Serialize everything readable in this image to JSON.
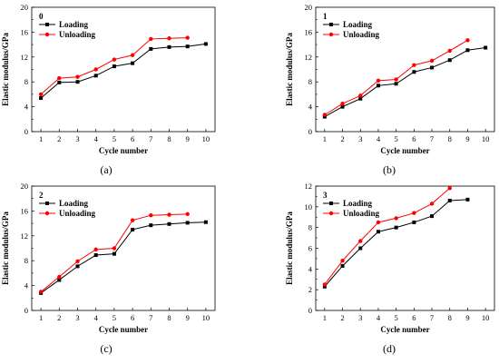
{
  "chart_data": [
    {
      "type": "line",
      "panel_tag": "0",
      "caption": "(a)",
      "xlabel": "Cycle number",
      "ylabel": "Elastic modulus/GPa",
      "x_ticks": [
        1,
        2,
        3,
        4,
        5,
        6,
        7,
        8,
        9,
        10
      ],
      "y_ticks": [
        0,
        4,
        8,
        12,
        16,
        20
      ],
      "xlim": [
        0.5,
        10.5
      ],
      "ylim": [
        0,
        20
      ],
      "legend_position": "top-left",
      "series": [
        {
          "name": "Loading",
          "color": "#000000",
          "marker": "square",
          "x": [
            1,
            2,
            3,
            4,
            5,
            6,
            7,
            8,
            9,
            10
          ],
          "y": [
            5.4,
            7.9,
            8.0,
            9.0,
            10.5,
            11.0,
            13.3,
            13.6,
            13.7,
            14.1
          ]
        },
        {
          "name": "Unloading",
          "color": "#ff0000",
          "marker": "circle",
          "x": [
            1,
            2,
            3,
            4,
            5,
            6,
            7,
            8,
            9
          ],
          "y": [
            6.0,
            8.6,
            8.8,
            10.0,
            11.6,
            12.3,
            14.9,
            15.0,
            15.1
          ]
        }
      ]
    },
    {
      "type": "line",
      "panel_tag": "1",
      "caption": "(b)",
      "xlabel": "Cycle number",
      "ylabel": "Elastic modulus/GPa",
      "x_ticks": [
        1,
        2,
        3,
        4,
        5,
        6,
        7,
        8,
        9,
        10
      ],
      "y_ticks": [
        0,
        4,
        8,
        12,
        16,
        20
      ],
      "xlim": [
        0.5,
        10.5
      ],
      "ylim": [
        0,
        20
      ],
      "legend_position": "top-left",
      "series": [
        {
          "name": "Loading",
          "color": "#000000",
          "marker": "square",
          "x": [
            1,
            2,
            3,
            4,
            5,
            6,
            7,
            8,
            9,
            10
          ],
          "y": [
            2.4,
            4.0,
            5.3,
            7.4,
            7.7,
            9.6,
            10.3,
            11.5,
            13.1,
            13.5
          ]
        },
        {
          "name": "Unloading",
          "color": "#ff0000",
          "marker": "circle",
          "x": [
            1,
            2,
            3,
            4,
            5,
            6,
            7,
            8,
            9
          ],
          "y": [
            2.7,
            4.5,
            5.8,
            8.2,
            8.4,
            10.7,
            11.4,
            13.0,
            14.7
          ]
        }
      ]
    },
    {
      "type": "line",
      "panel_tag": "2",
      "caption": "(c)",
      "xlabel": "Cycle number",
      "ylabel": "Elastic modulus/GPa",
      "x_ticks": [
        1,
        2,
        3,
        4,
        5,
        6,
        7,
        8,
        9,
        10
      ],
      "y_ticks": [
        0,
        4,
        8,
        12,
        16,
        20
      ],
      "xlim": [
        0.5,
        10.5
      ],
      "ylim": [
        0,
        20
      ],
      "legend_position": "top-left",
      "series": [
        {
          "name": "Loading",
          "color": "#000000",
          "marker": "square",
          "x": [
            1,
            2,
            3,
            4,
            5,
            6,
            7,
            8,
            9,
            10
          ],
          "y": [
            2.8,
            4.9,
            7.1,
            8.9,
            9.1,
            13.0,
            13.7,
            13.9,
            14.1,
            14.2
          ]
        },
        {
          "name": "Unloading",
          "color": "#ff0000",
          "marker": "circle",
          "x": [
            1,
            2,
            3,
            4,
            5,
            6,
            7,
            8,
            9
          ],
          "y": [
            3.0,
            5.4,
            7.9,
            9.8,
            10.0,
            14.5,
            15.3,
            15.4,
            15.5
          ]
        }
      ]
    },
    {
      "type": "line",
      "panel_tag": "3",
      "caption": "(d)",
      "xlabel": "Cycle number",
      "ylabel": "Elastic modulus/GPa",
      "x_ticks": [
        1,
        2,
        3,
        4,
        5,
        6,
        7,
        8,
        9,
        10
      ],
      "y_ticks": [
        0,
        2,
        4,
        6,
        8,
        10,
        12
      ],
      "xlim": [
        0.5,
        10.5
      ],
      "ylim": [
        0,
        12
      ],
      "legend_position": "top-left",
      "series": [
        {
          "name": "Loading",
          "color": "#000000",
          "marker": "square",
          "x": [
            1,
            2,
            3,
            4,
            5,
            6,
            7,
            8,
            9
          ],
          "y": [
            2.3,
            4.3,
            6.0,
            7.6,
            8.0,
            8.5,
            9.1,
            10.6,
            10.7
          ]
        },
        {
          "name": "Unloading",
          "color": "#ff0000",
          "marker": "circle",
          "x": [
            1,
            2,
            3,
            4,
            5,
            6,
            7,
            8
          ],
          "y": [
            2.5,
            4.8,
            6.7,
            8.5,
            8.9,
            9.4,
            10.3,
            11.8
          ]
        }
      ]
    }
  ]
}
